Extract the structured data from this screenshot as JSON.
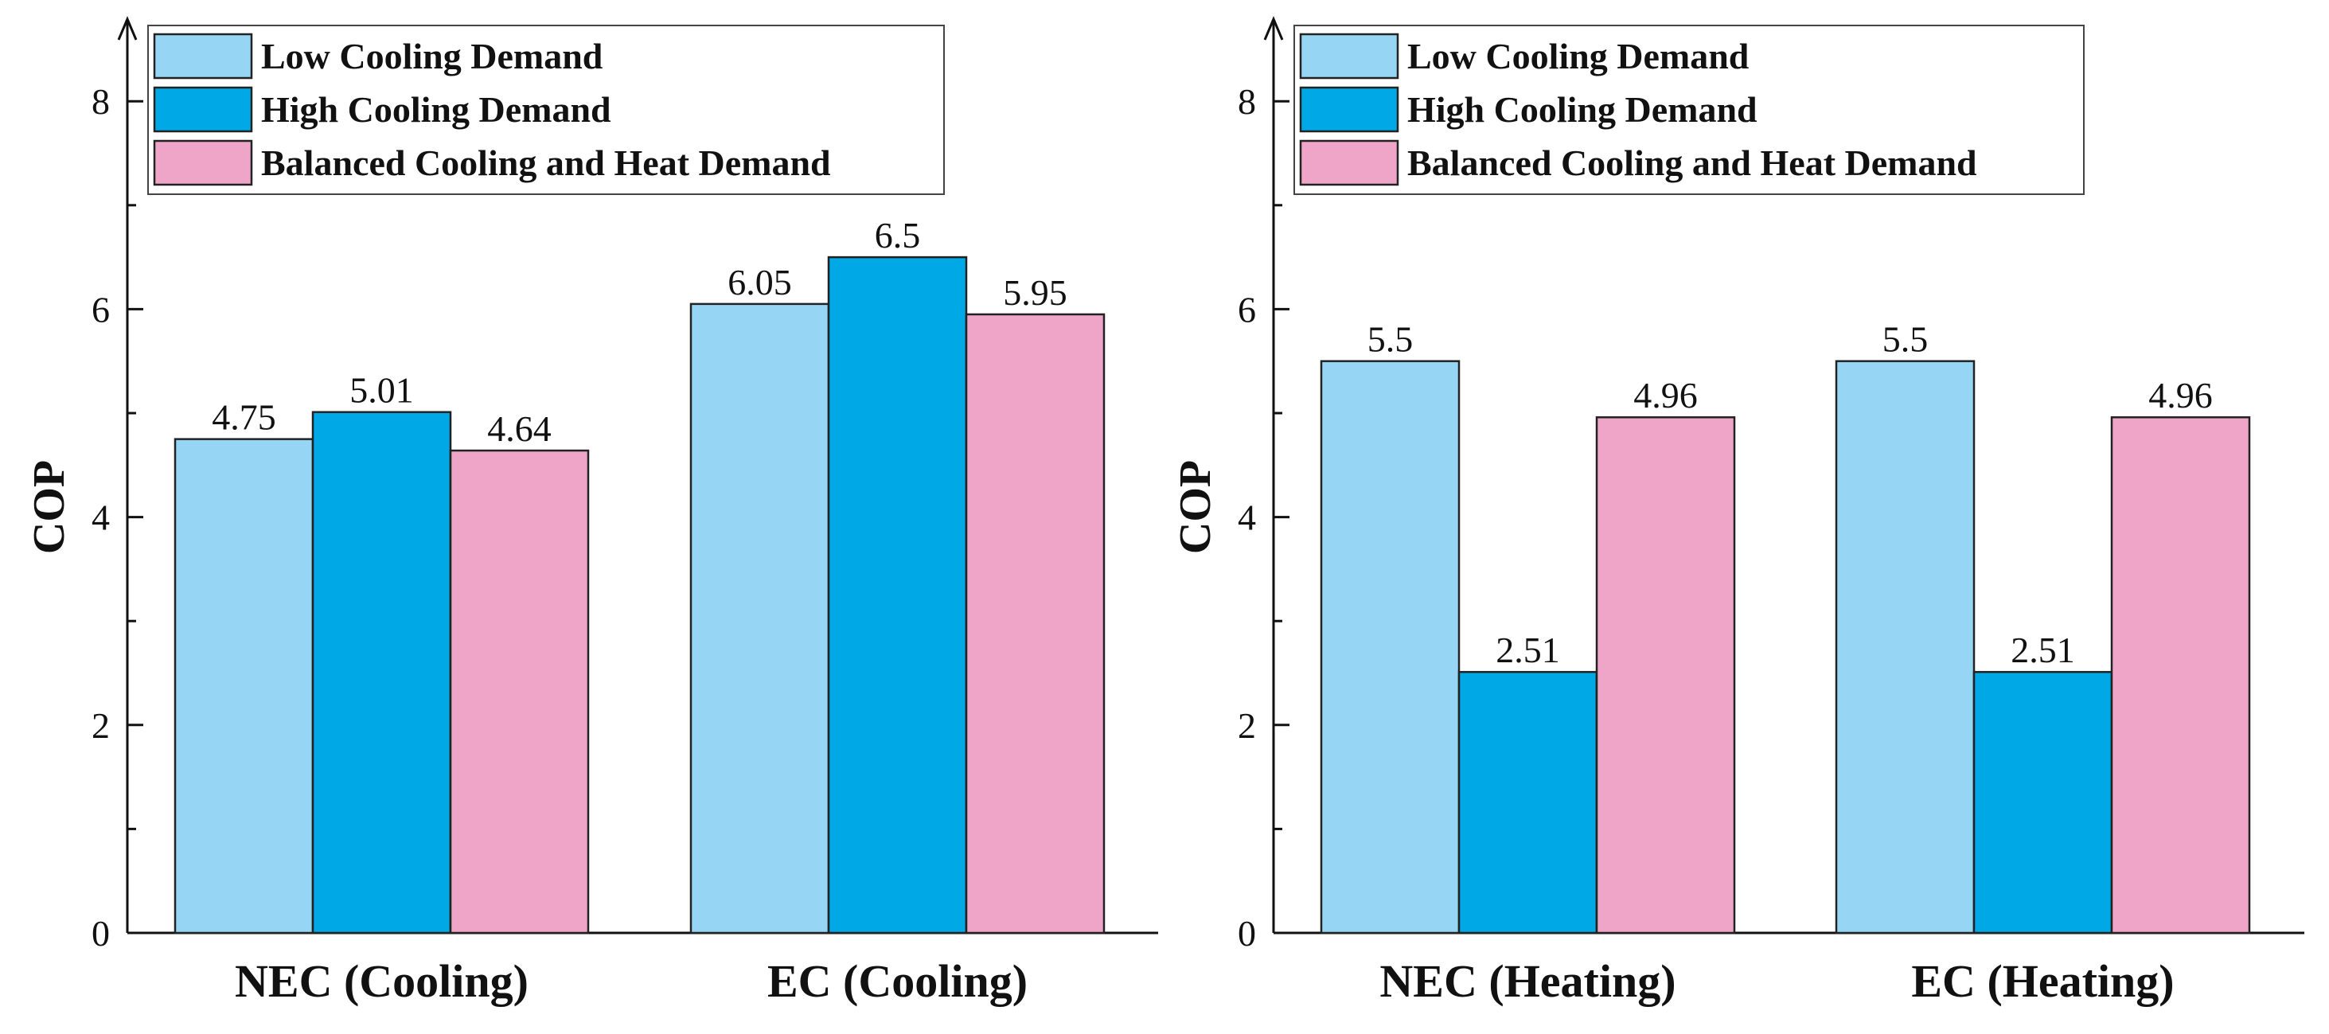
{
  "chart_data": [
    {
      "type": "bar",
      "categories": [
        "NEC (Cooling)",
        "EC (Cooling)"
      ],
      "series": [
        {
          "name": "Low Cooling Demand",
          "color": "#97D5F5",
          "values": [
            4.75,
            6.05
          ],
          "labels": [
            "4.75",
            "6.05"
          ]
        },
        {
          "name": "High Cooling Demand",
          "color": "#00A8E6",
          "values": [
            5.01,
            6.5
          ],
          "labels": [
            "5.01",
            "6.5"
          ]
        },
        {
          "name": "Balanced Cooling and Heat Demand",
          "color": "#EEA5C7",
          "values": [
            4.64,
            5.95
          ],
          "labels": [
            "4.64",
            "5.95"
          ]
        }
      ],
      "ylabel": "COP",
      "xlabel": "",
      "ylim": [
        0,
        8.8
      ],
      "yticks": [
        "0",
        "2",
        "4",
        "6",
        "8"
      ],
      "legend": "top-left",
      "grid": false
    },
    {
      "type": "bar",
      "categories": [
        "NEC (Heating)",
        "EC (Heating)"
      ],
      "series": [
        {
          "name": "Low Cooling Demand",
          "color": "#97D5F5",
          "values": [
            5.5,
            5.5
          ],
          "labels": [
            "5.5",
            "5.5"
          ]
        },
        {
          "name": "High Cooling Demand",
          "color": "#00A8E6",
          "values": [
            2.51,
            2.51
          ],
          "labels": [
            "2.51",
            "2.51"
          ]
        },
        {
          "name": "Balanced Cooling and Heat Demand",
          "color": "#EEA5C7",
          "values": [
            4.96,
            4.96
          ],
          "labels": [
            "4.96",
            "4.96"
          ]
        }
      ],
      "ylabel": "COP",
      "xlabel": "",
      "ylim": [
        0,
        8.8
      ],
      "yticks": [
        "0",
        "2",
        "4",
        "6",
        "8"
      ],
      "legend": "top-left",
      "grid": false
    }
  ]
}
